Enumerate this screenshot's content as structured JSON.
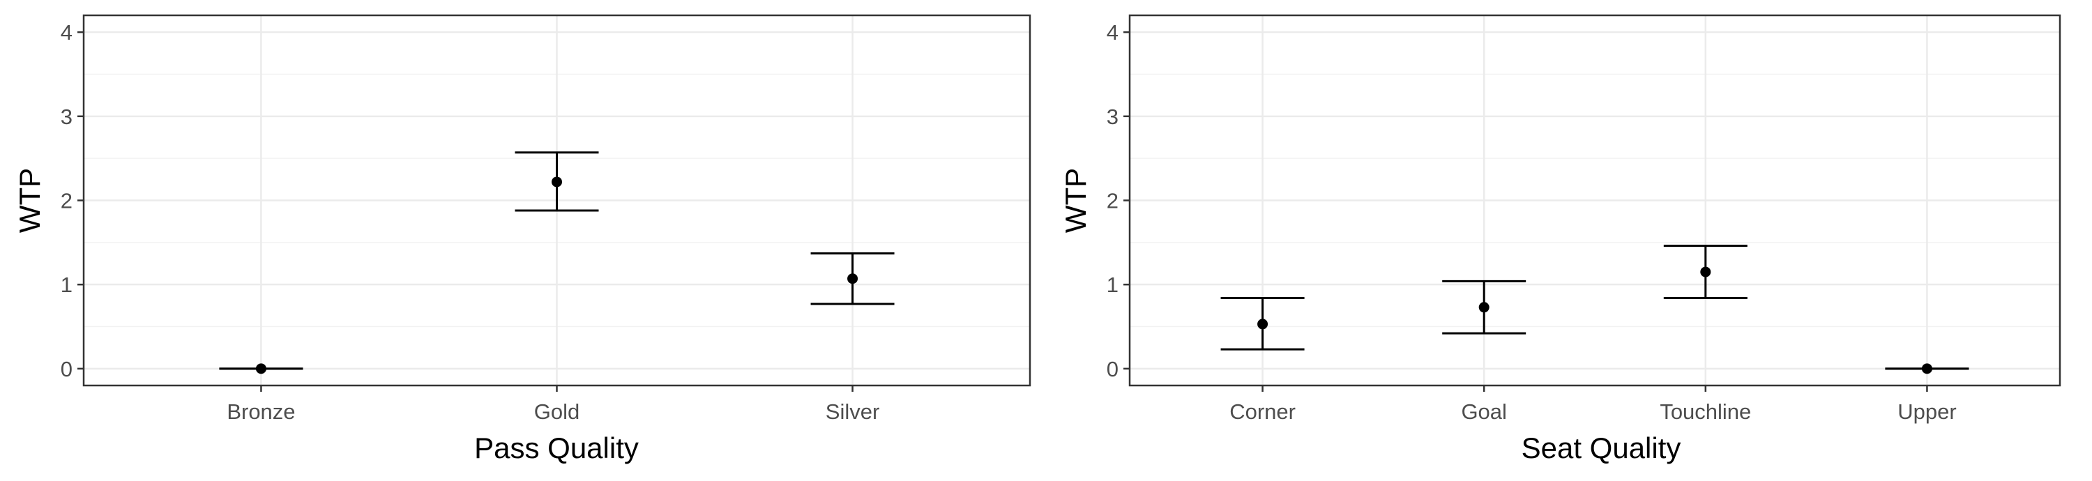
{
  "chart_data": [
    {
      "type": "scatter",
      "error_bars": true,
      "title": "",
      "xlabel": "Pass Quality",
      "ylabel": "WTP",
      "ylim": [
        -0.2,
        4.2
      ],
      "yticks": [
        0,
        1,
        2,
        3,
        4
      ],
      "grid": true,
      "categories": [
        "Bronze",
        "Gold",
        "Silver"
      ],
      "series": [
        {
          "values": [
            0,
            2.22,
            1.07
          ],
          "lower": [
            0,
            1.88,
            0.77
          ],
          "upper": [
            0,
            2.57,
            1.37
          ]
        }
      ]
    },
    {
      "type": "scatter",
      "error_bars": true,
      "title": "",
      "xlabel": "Seat Quality",
      "ylabel": "WTP",
      "ylim": [
        -0.2,
        4.2
      ],
      "yticks": [
        0,
        1,
        2,
        3,
        4
      ],
      "grid": true,
      "categories": [
        "Corner",
        "Goal",
        "Touchline",
        "Upper"
      ],
      "series": [
        {
          "values": [
            0.53,
            0.73,
            1.15,
            0
          ],
          "lower": [
            0.23,
            0.42,
            0.84,
            0
          ],
          "upper": [
            0.84,
            1.04,
            1.46,
            0
          ]
        }
      ]
    }
  ]
}
